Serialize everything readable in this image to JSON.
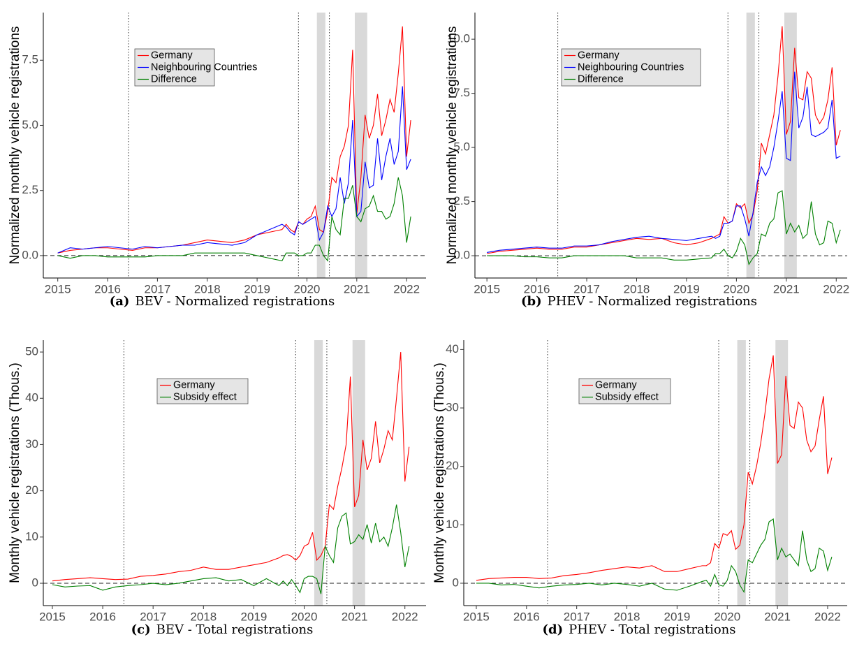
{
  "chart_data": [
    {
      "type": "line",
      "label": "(a)",
      "caption": "BEV - Normalized registrations",
      "ylabel": "Normalized monthly vehicle registrations",
      "xlim": [
        2014.71,
        2022.39
      ],
      "ylim": [
        -0.86,
        9.33
      ],
      "xticks": [
        2015,
        2016,
        2017,
        2018,
        2019,
        2020,
        2021,
        2022
      ],
      "yticks": [
        {
          "value": 0,
          "label": "0.0"
        },
        2.5,
        {
          "value": 5,
          "label": "5.0"
        },
        7.5
      ],
      "vlines": [
        2016.42,
        2019.83,
        2020.45
      ],
      "bands": [
        [
          2020.2,
          2020.37
        ],
        [
          2020.96,
          2021.21
        ]
      ],
      "hline": 0,
      "x": [
        2015.0,
        2015.25,
        2015.5,
        2015.75,
        2016.0,
        2016.25,
        2016.5,
        2016.75,
        2017.0,
        2017.25,
        2017.5,
        2017.75,
        2018.0,
        2018.25,
        2018.5,
        2018.75,
        2019.0,
        2019.25,
        2019.5,
        2019.583,
        2019.667,
        2019.75,
        2019.833,
        2019.917,
        2020.0,
        2020.083,
        2020.167,
        2020.25,
        2020.333,
        2020.417,
        2020.5,
        2020.583,
        2020.667,
        2020.75,
        2020.833,
        2020.917,
        2021.0,
        2021.083,
        2021.167,
        2021.25,
        2021.333,
        2021.417,
        2021.5,
        2021.583,
        2021.667,
        2021.75,
        2021.833,
        2021.917,
        2022.0,
        2022.083
      ],
      "series": [
        {
          "name": "Germany",
          "color": "#ff0000",
          "values": [
            0.1,
            0.2,
            0.25,
            0.3,
            0.3,
            0.25,
            0.2,
            0.3,
            0.3,
            0.35,
            0.4,
            0.5,
            0.6,
            0.55,
            0.5,
            0.6,
            0.8,
            0.9,
            1.0,
            1.2,
            1.0,
            0.9,
            1.3,
            1.2,
            1.4,
            1.5,
            1.9,
            1.0,
            0.9,
            1.7,
            3.0,
            2.8,
            3.8,
            4.2,
            5.0,
            7.9,
            1.6,
            3.0,
            5.4,
            4.5,
            5.0,
            6.2,
            4.6,
            5.2,
            6.0,
            5.5,
            7.0,
            8.8,
            3.8,
            5.2
          ]
        },
        {
          "name": "Neighbouring Countries",
          "color": "#0000ff",
          "values": [
            0.1,
            0.3,
            0.25,
            0.3,
            0.35,
            0.3,
            0.25,
            0.35,
            0.3,
            0.35,
            0.4,
            0.4,
            0.5,
            0.45,
            0.4,
            0.5,
            0.8,
            1.0,
            1.2,
            1.1,
            0.9,
            0.8,
            1.3,
            1.2,
            1.3,
            1.4,
            1.5,
            0.6,
            0.9,
            1.9,
            1.5,
            1.8,
            3.0,
            2.0,
            2.8,
            5.2,
            1.5,
            1.7,
            3.6,
            2.6,
            2.7,
            4.5,
            2.9,
            3.8,
            4.5,
            3.5,
            4.0,
            6.5,
            3.3,
            3.7
          ]
        },
        {
          "name": "Difference",
          "color": "#008000",
          "values": [
            0,
            -0.1,
            0,
            0,
            -0.05,
            -0.05,
            -0.05,
            -0.05,
            0,
            0,
            0,
            0.1,
            0.1,
            0.1,
            0.1,
            0.1,
            0,
            -0.1,
            -0.2,
            0.1,
            0.1,
            0.1,
            0,
            0,
            0.1,
            0.1,
            0.4,
            0.4,
            0,
            -0.2,
            1.5,
            1.0,
            0.8,
            2.2,
            2.2,
            2.7,
            1.5,
            1.3,
            1.8,
            1.9,
            2.3,
            1.7,
            1.7,
            1.4,
            1.5,
            2.0,
            3.0,
            2.3,
            0.5,
            1.5
          ]
        }
      ]
    },
    {
      "type": "line",
      "label": "(b)",
      "caption": "PHEV - Normalized registrations",
      "ylabel": "Normalized monthly vehicle registrations",
      "xlim": [
        2014.76,
        2022.22
      ],
      "ylim": [
        -1.03,
        11.23
      ],
      "xticks": [
        2015,
        2016,
        2017,
        2018,
        2019,
        2020,
        2021,
        2022
      ],
      "yticks": [
        {
          "value": 0,
          "label": "0.0"
        },
        2.5,
        {
          "value": 5,
          "label": "5.0"
        },
        7.5,
        {
          "value": 10,
          "label": "10.0"
        }
      ],
      "vlines": [
        2016.42,
        2019.83,
        2020.45
      ],
      "bands": [
        [
          2020.2,
          2020.37
        ],
        [
          2020.96,
          2021.21
        ]
      ],
      "hline": 0,
      "x": [
        2015.0,
        2015.25,
        2015.5,
        2015.75,
        2016.0,
        2016.25,
        2016.5,
        2016.75,
        2017.0,
        2017.25,
        2017.5,
        2017.75,
        2018.0,
        2018.25,
        2018.5,
        2018.75,
        2019.0,
        2019.25,
        2019.5,
        2019.583,
        2019.667,
        2019.75,
        2019.833,
        2019.917,
        2020.0,
        2020.083,
        2020.167,
        2020.25,
        2020.333,
        2020.417,
        2020.5,
        2020.583,
        2020.667,
        2020.75,
        2020.833,
        2020.917,
        2021.0,
        2021.083,
        2021.167,
        2021.25,
        2021.333,
        2021.417,
        2021.5,
        2021.583,
        2021.667,
        2021.75,
        2021.833,
        2021.917,
        2022.0,
        2022.083
      ],
      "series": [
        {
          "name": "Germany",
          "color": "#ff0000",
          "values": [
            0.1,
            0.2,
            0.25,
            0.3,
            0.35,
            0.3,
            0.3,
            0.4,
            0.4,
            0.5,
            0.6,
            0.7,
            0.8,
            0.75,
            0.8,
            0.6,
            0.5,
            0.6,
            0.8,
            0.9,
            1.0,
            1.8,
            1.5,
            1.6,
            2.4,
            2.2,
            2.4,
            1.5,
            1.9,
            3.0,
            5.2,
            4.7,
            5.6,
            6.5,
            8.3,
            10.6,
            5.6,
            6.2,
            9.6,
            7.3,
            7.2,
            8.5,
            8.2,
            6.5,
            6.1,
            6.4,
            7.2,
            8.7,
            5.1,
            5.8
          ]
        },
        {
          "name": "Neighbouring Countries",
          "color": "#0000ff",
          "values": [
            0.15,
            0.25,
            0.3,
            0.35,
            0.4,
            0.35,
            0.35,
            0.45,
            0.45,
            0.5,
            0.65,
            0.75,
            0.85,
            0.9,
            0.8,
            0.75,
            0.7,
            0.8,
            0.9,
            0.8,
            0.9,
            1.5,
            1.5,
            1.6,
            2.3,
            2.3,
            1.7,
            0.9,
            2.0,
            3.4,
            4.1,
            3.7,
            4.1,
            5.0,
            6.2,
            7.6,
            4.5,
            4.4,
            8.5,
            5.9,
            6.4,
            7.8,
            5.6,
            5.5,
            5.6,
            5.7,
            5.9,
            7.2,
            4.5,
            4.6
          ]
        },
        {
          "name": "Difference",
          "color": "#008000",
          "values": [
            0,
            0,
            0,
            -0.05,
            -0.05,
            -0.1,
            -0.1,
            0,
            0,
            0,
            0,
            0,
            -0.1,
            -0.1,
            -0.1,
            -0.2,
            -0.2,
            -0.15,
            -0.1,
            0.1,
            0.1,
            0.3,
            0,
            -0.1,
            0.2,
            0.8,
            0.5,
            -0.4,
            -0.1,
            0.1,
            1.0,
            0.9,
            1.5,
            1.7,
            2.9,
            3.0,
            1.0,
            1.5,
            1.1,
            1.4,
            0.8,
            1.0,
            2.5,
            1.0,
            0.5,
            0.6,
            1.6,
            1.5,
            0.6,
            1.2
          ]
        }
      ]
    },
    {
      "type": "line",
      "label": "(c)",
      "caption": "BEV - Total registrations",
      "ylabel": "Monthly vehicle registrations (Thous.)",
      "xlim": [
        2014.82,
        2022.42
      ],
      "ylim": [
        -4.83,
        52.57
      ],
      "xticks": [
        2015,
        2016,
        2017,
        2018,
        2019,
        2020,
        2021,
        2022
      ],
      "yticks": [
        0,
        10,
        20,
        30,
        40,
        50
      ],
      "vlines": [
        2016.42,
        2019.83,
        2020.45
      ],
      "bands": [
        [
          2020.2,
          2020.37
        ],
        [
          2020.96,
          2021.21
        ]
      ],
      "hline": 0,
      "x": [
        2015.0,
        2015.25,
        2015.5,
        2015.75,
        2016.0,
        2016.25,
        2016.5,
        2016.75,
        2017.0,
        2017.25,
        2017.5,
        2017.75,
        2018.0,
        2018.25,
        2018.5,
        2018.75,
        2019.0,
        2019.25,
        2019.5,
        2019.583,
        2019.667,
        2019.75,
        2019.833,
        2019.917,
        2020.0,
        2020.083,
        2020.167,
        2020.25,
        2020.333,
        2020.417,
        2020.5,
        2020.583,
        2020.667,
        2020.75,
        2020.833,
        2020.917,
        2021.0,
        2021.083,
        2021.167,
        2021.25,
        2021.333,
        2021.417,
        2021.5,
        2021.583,
        2021.667,
        2021.75,
        2021.833,
        2021.917,
        2022.0,
        2022.083
      ],
      "series": [
        {
          "name": "Germany",
          "color": "#ff0000",
          "values": [
            0.5,
            0.8,
            1.0,
            1.2,
            1.0,
            0.8,
            0.9,
            1.5,
            1.7,
            2.0,
            2.5,
            2.8,
            3.5,
            3.0,
            3.0,
            3.5,
            4.0,
            4.5,
            5.5,
            6.0,
            6.2,
            5.8,
            5.0,
            6.0,
            8.0,
            8.5,
            11.0,
            5.0,
            6.0,
            8.0,
            17.0,
            16.0,
            21.0,
            25.0,
            30.0,
            44.7,
            16.5,
            19.0,
            31.0,
            24.5,
            27.0,
            35.0,
            26.0,
            29.0,
            33.0,
            31.0,
            40.0,
            50.0,
            22.0,
            29.5
          ]
        },
        {
          "name": "Subsidy effect",
          "color": "#008000",
          "values": [
            -0.3,
            -0.8,
            -0.6,
            -0.5,
            -1.5,
            -0.8,
            -0.5,
            -0.3,
            0,
            -0.3,
            0,
            0.5,
            1.0,
            1.2,
            0.5,
            0.8,
            -0.5,
            1.0,
            -0.5,
            0.5,
            -0.5,
            0.8,
            -0.5,
            -2.0,
            1.0,
            1.5,
            1.5,
            1.0,
            -2.3,
            8.0,
            6.0,
            4.5,
            12.0,
            14.5,
            15.2,
            8.5,
            9.0,
            10.5,
            9.5,
            12.7,
            8.7,
            13.0,
            9.0,
            10.0,
            8.0,
            12.0,
            17.0,
            11.0,
            3.5,
            8.0
          ]
        }
      ]
    },
    {
      "type": "line",
      "label": "(d)",
      "caption": "PHEV - Total registrations",
      "ylabel": "Monthly vehicle registrations (Thous.)",
      "xlim": [
        2014.75,
        2022.39
      ],
      "ylim": [
        -3.83,
        41.6
      ],
      "xticks": [
        2015,
        2016,
        2017,
        2018,
        2019,
        2020,
        2021,
        2022
      ],
      "yticks": [
        0,
        10,
        20,
        30,
        40
      ],
      "vlines": [
        2016.42,
        2019.83,
        2020.45
      ],
      "bands": [
        [
          2020.2,
          2020.37
        ],
        [
          2020.96,
          2021.21
        ]
      ],
      "hline": 0,
      "x": [
        2015.0,
        2015.25,
        2015.5,
        2015.75,
        2016.0,
        2016.25,
        2016.5,
        2016.75,
        2017.0,
        2017.25,
        2017.5,
        2017.75,
        2018.0,
        2018.25,
        2018.5,
        2018.75,
        2019.0,
        2019.25,
        2019.5,
        2019.583,
        2019.667,
        2019.75,
        2019.833,
        2019.917,
        2020.0,
        2020.083,
        2020.167,
        2020.25,
        2020.333,
        2020.417,
        2020.5,
        2020.583,
        2020.667,
        2020.75,
        2020.833,
        2020.917,
        2021.0,
        2021.083,
        2021.167,
        2021.25,
        2021.333,
        2021.417,
        2021.5,
        2021.583,
        2021.667,
        2021.75,
        2021.833,
        2021.917,
        2022.0,
        2022.083
      ],
      "series": [
        {
          "name": "Germany",
          "color": "#ff0000",
          "values": [
            0.5,
            0.8,
            0.9,
            1.0,
            1.0,
            0.8,
            0.9,
            1.3,
            1.5,
            1.8,
            2.2,
            2.5,
            2.8,
            2.6,
            3.0,
            2.0,
            2.0,
            2.5,
            3.0,
            3.0,
            3.5,
            6.8,
            6.0,
            8.5,
            8.2,
            9.0,
            5.8,
            6.5,
            10.0,
            19.0,
            17.0,
            20.0,
            24.0,
            29.0,
            35.0,
            39.0,
            20.5,
            22.0,
            35.5,
            27.0,
            26.5,
            31.0,
            30.0,
            24.5,
            22.5,
            23.5,
            28.0,
            32.0,
            18.7,
            21.5
          ]
        },
        {
          "name": "Subsidy effect",
          "color": "#008000",
          "values": [
            0,
            0,
            -0.3,
            -0.2,
            -0.5,
            -0.8,
            -0.5,
            -0.3,
            -0.2,
            0,
            -0.3,
            0,
            -0.2,
            -0.5,
            0,
            -1.0,
            -1.2,
            -0.5,
            0.3,
            0.5,
            -0.5,
            1.5,
            -0.3,
            -0.5,
            0.5,
            3.0,
            2.0,
            -0.3,
            -1.5,
            4.0,
            3.5,
            5.0,
            6.5,
            7.5,
            10.5,
            11.0,
            4.0,
            6.0,
            4.5,
            5.0,
            4.0,
            3.0,
            9.0,
            4.0,
            2.0,
            2.5,
            6.0,
            5.5,
            2.2,
            4.5
          ]
        }
      ]
    }
  ]
}
